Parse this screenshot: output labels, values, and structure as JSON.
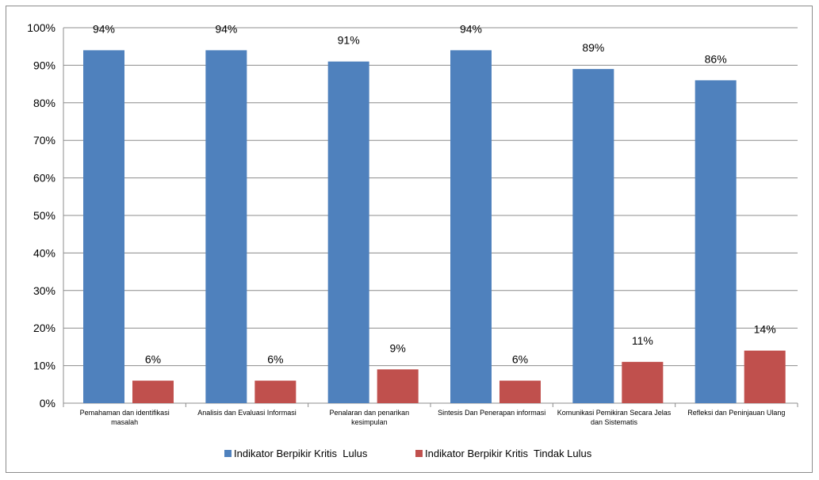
{
  "chart_data": {
    "type": "bar",
    "categories": [
      [
        "Pemahaman dan identifikasi",
        "masalah"
      ],
      [
        "Analisis dan Evaluasi Informasi"
      ],
      [
        "Penalaran dan penarikan",
        "kesimpulan"
      ],
      [
        "Sintesis Dan Penerapan informasi"
      ],
      [
        "Komunikasi Pemikiran Secara Jelas",
        "dan Sistematis"
      ],
      [
        "Refleksi dan Peninjauan Ulang"
      ]
    ],
    "series": [
      {
        "name": "Indikator Berpikir Kritis  Lulus",
        "values": [
          94,
          94,
          91,
          94,
          89,
          86
        ],
        "labels": [
          "94%",
          "94%",
          "91%",
          "94%",
          "89%",
          "86%"
        ],
        "color": "#4f81bd"
      },
      {
        "name": "Indikator Berpikir Kritis  Tindak Lulus",
        "values": [
          6,
          6,
          9,
          6,
          11,
          14
        ],
        "labels": [
          "6%",
          "6%",
          "9%",
          "6%",
          "11%",
          "14%"
        ],
        "color": "#c0504d"
      }
    ],
    "ylim": [
      0,
      100
    ],
    "yticks": [
      "0%",
      "10%",
      "20%",
      "30%",
      "40%",
      "50%",
      "60%",
      "70%",
      "80%",
      "90%",
      "100%"
    ],
    "grid": true,
    "legend": "bottom",
    "title": "",
    "xlabel": "",
    "ylabel": ""
  }
}
